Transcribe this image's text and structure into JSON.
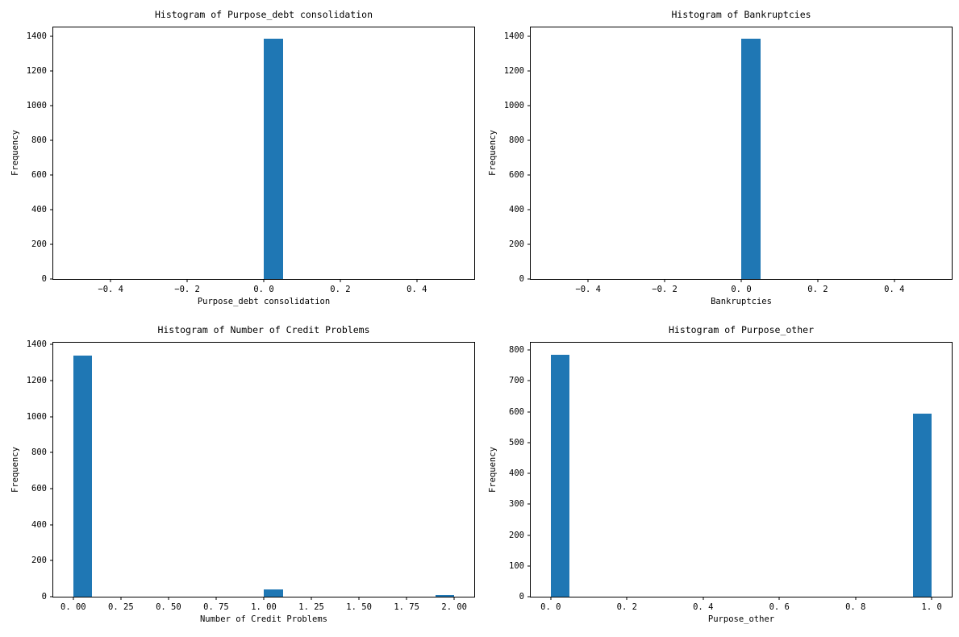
{
  "figure": {
    "background": "#ffffff",
    "bar_color": "#1f77b4",
    "frame_color": "#000000"
  },
  "chart_data": [
    {
      "type": "bar",
      "subtype": "histogram",
      "title": "Histogram of Purpose_debt consolidation",
      "xlabel": "Purpose_debt consolidation",
      "ylabel": "Frequency",
      "xlim": [
        -0.55,
        0.55
      ],
      "ylim": [
        0,
        1450
      ],
      "grid": false,
      "legend": null,
      "xticks": [
        {
          "v": -0.4,
          "label": "−0. 4"
        },
        {
          "v": -0.2,
          "label": "−0. 2"
        },
        {
          "v": 0.0,
          "label": "0. 0"
        },
        {
          "v": 0.2,
          "label": "0. 2"
        },
        {
          "v": 0.4,
          "label": "0. 4"
        }
      ],
      "yticks": [
        {
          "v": 0,
          "label": "0"
        },
        {
          "v": 200,
          "label": "200"
        },
        {
          "v": 400,
          "label": "400"
        },
        {
          "v": 600,
          "label": "600"
        },
        {
          "v": 800,
          "label": "800"
        },
        {
          "v": 1000,
          "label": "1000"
        },
        {
          "v": 1200,
          "label": "1200"
        },
        {
          "v": 1400,
          "label": "1400"
        }
      ],
      "bars": [
        {
          "x0": 0.0,
          "x1": 0.05,
          "count": 1383
        }
      ]
    },
    {
      "type": "bar",
      "subtype": "histogram",
      "title": "Histogram of Bankruptcies",
      "xlabel": "Bankruptcies",
      "ylabel": "Frequency",
      "xlim": [
        -0.55,
        0.55
      ],
      "ylim": [
        0,
        1450
      ],
      "grid": false,
      "legend": null,
      "xticks": [
        {
          "v": -0.4,
          "label": "−0. 4"
        },
        {
          "v": -0.2,
          "label": "−0. 2"
        },
        {
          "v": 0.0,
          "label": "0. 0"
        },
        {
          "v": 0.2,
          "label": "0. 2"
        },
        {
          "v": 0.4,
          "label": "0. 4"
        }
      ],
      "yticks": [
        {
          "v": 0,
          "label": "0"
        },
        {
          "v": 200,
          "label": "200"
        },
        {
          "v": 400,
          "label": "400"
        },
        {
          "v": 600,
          "label": "600"
        },
        {
          "v": 800,
          "label": "800"
        },
        {
          "v": 1000,
          "label": "1000"
        },
        {
          "v": 1200,
          "label": "1200"
        },
        {
          "v": 1400,
          "label": "1400"
        }
      ],
      "bars": [
        {
          "x0": 0.0,
          "x1": 0.05,
          "count": 1383
        }
      ]
    },
    {
      "type": "bar",
      "subtype": "histogram",
      "title": "Histogram of Number of Credit Problems",
      "xlabel": "Number of Credit Problems",
      "ylabel": "Frequency",
      "xlim": [
        -0.105,
        2.105
      ],
      "ylim": [
        0,
        1410
      ],
      "grid": false,
      "legend": null,
      "xticks": [
        {
          "v": 0.0,
          "label": "0. 00"
        },
        {
          "v": 0.25,
          "label": "0. 25"
        },
        {
          "v": 0.5,
          "label": "0. 50"
        },
        {
          "v": 0.75,
          "label": "0. 75"
        },
        {
          "v": 1.0,
          "label": "1. 00"
        },
        {
          "v": 1.25,
          "label": "1. 25"
        },
        {
          "v": 1.5,
          "label": "1. 50"
        },
        {
          "v": 1.75,
          "label": "1. 75"
        },
        {
          "v": 2.0,
          "label": "2. 00"
        }
      ],
      "yticks": [
        {
          "v": 0,
          "label": "0"
        },
        {
          "v": 200,
          "label": "200"
        },
        {
          "v": 400,
          "label": "400"
        },
        {
          "v": 600,
          "label": "600"
        },
        {
          "v": 800,
          "label": "800"
        },
        {
          "v": 1000,
          "label": "1000"
        },
        {
          "v": 1200,
          "label": "1200"
        },
        {
          "v": 1400,
          "label": "1400"
        }
      ],
      "bars": [
        {
          "x0": 0.0,
          "x1": 0.1,
          "count": 1340
        },
        {
          "x0": 1.0,
          "x1": 1.1,
          "count": 40
        },
        {
          "x0": 1.9,
          "x1": 2.0,
          "count": 8
        }
      ]
    },
    {
      "type": "bar",
      "subtype": "histogram",
      "title": "Histogram of Purpose_other",
      "xlabel": "Purpose_other",
      "ylabel": "Frequency",
      "xlim": [
        -0.0525,
        1.0525
      ],
      "ylim": [
        0,
        824
      ],
      "grid": false,
      "legend": null,
      "xticks": [
        {
          "v": 0.0,
          "label": "0. 0"
        },
        {
          "v": 0.2,
          "label": "0. 2"
        },
        {
          "v": 0.4,
          "label": "0. 4"
        },
        {
          "v": 0.6,
          "label": "0. 6"
        },
        {
          "v": 0.8,
          "label": "0. 8"
        },
        {
          "v": 1.0,
          "label": "1. 0"
        }
      ],
      "yticks": [
        {
          "v": 0,
          "label": "0"
        },
        {
          "v": 100,
          "label": "100"
        },
        {
          "v": 200,
          "label": "200"
        },
        {
          "v": 300,
          "label": "300"
        },
        {
          "v": 400,
          "label": "400"
        },
        {
          "v": 500,
          "label": "500"
        },
        {
          "v": 600,
          "label": "600"
        },
        {
          "v": 700,
          "label": "700"
        },
        {
          "v": 800,
          "label": "800"
        }
      ],
      "bars": [
        {
          "x0": 0.0,
          "x1": 0.05,
          "count": 785
        },
        {
          "x0": 0.95,
          "x1": 1.0,
          "count": 595
        }
      ]
    }
  ]
}
